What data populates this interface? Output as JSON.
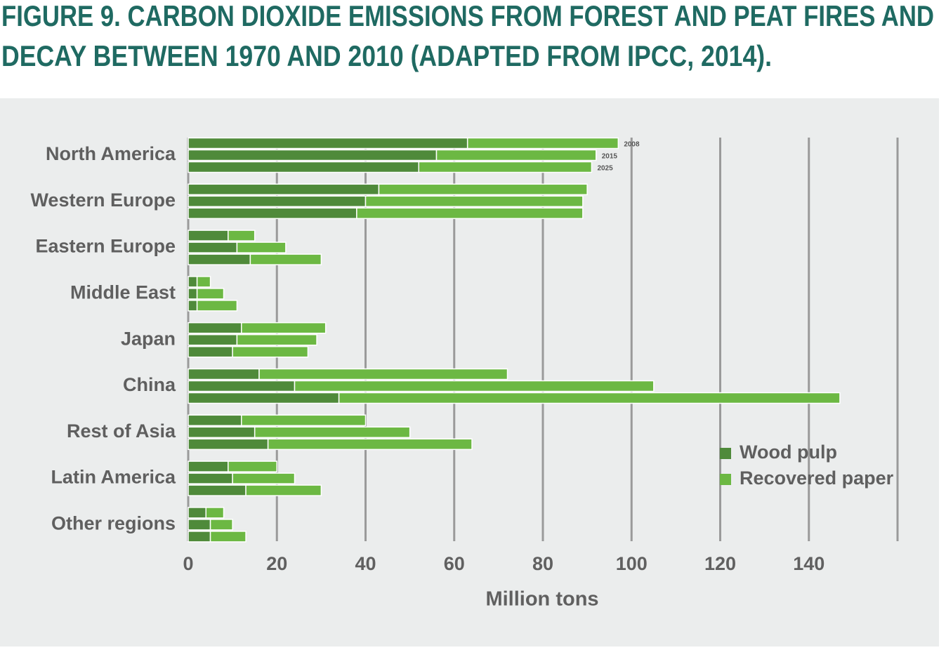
{
  "chart_data": {
    "type": "stacked-grouped-hbar",
    "title": [
      "FIGURE 9. CARBON DIOXIDE EMISSIONS FROM FOREST AND PEAT FIRES AND",
      "DECAY BETWEEN 1970 AND 2010 (ADAPTED FROM IPCC, 2014)."
    ],
    "categories": [
      "North America",
      "Western Europe",
      "Eastern Europe",
      "Middle East",
      "Japan",
      "China",
      "Rest of Asia",
      "Latin America",
      "Other regions"
    ],
    "year_labels": [
      "2008",
      "2015",
      "2025"
    ],
    "series": [
      {
        "name": "Wood pulp",
        "color": "#4f8a3a",
        "values": [
          [
            63,
            56,
            52
          ],
          [
            43,
            40,
            38
          ],
          [
            9,
            11,
            14
          ],
          [
            2,
            2,
            2
          ],
          [
            12,
            11,
            10
          ],
          [
            16,
            24,
            34
          ],
          [
            12,
            15,
            18
          ],
          [
            9,
            10,
            13
          ],
          [
            4,
            5,
            5
          ]
        ]
      },
      {
        "name": "Recovered paper",
        "color": "#6cb843",
        "values": [
          [
            34,
            36,
            39
          ],
          [
            47,
            49,
            51
          ],
          [
            6,
            11,
            16
          ],
          [
            3,
            6,
            9
          ],
          [
            19,
            18,
            17
          ],
          [
            56,
            81,
            113
          ],
          [
            28,
            35,
            46
          ],
          [
            11,
            14,
            17
          ],
          [
            4,
            5,
            8
          ]
        ]
      }
    ],
    "xlabel": "Million tons",
    "xlim": [
      0,
      160
    ],
    "xticks": [
      0,
      20,
      40,
      60,
      80,
      100,
      120,
      140
    ],
    "grid": true,
    "legend": "lower right"
  }
}
